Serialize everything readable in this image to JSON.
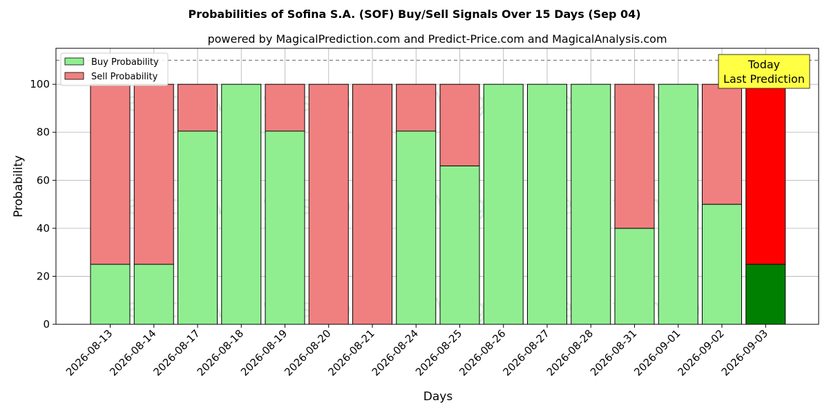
{
  "chart_data": {
    "type": "bar",
    "stacked": true,
    "title": "Probabilities of Sofina S.A. (SOF) Buy/Sell Signals Over 15 Days (Sep 04)",
    "subtitle": "powered by MagicalPrediction.com and Predict-Price.com and MagicalAnalysis.com",
    "xlabel": "Days",
    "ylabel": "Probability",
    "ylim": [
      0,
      115
    ],
    "yticks": [
      0,
      20,
      40,
      60,
      80,
      100
    ],
    "grid": true,
    "reference_line": 110,
    "legend_position": "top-left",
    "categories": [
      "2026-08-13",
      "2026-08-14",
      "2026-08-17",
      "2026-08-18",
      "2026-08-19",
      "2026-08-20",
      "2026-08-21",
      "2026-08-24",
      "2026-08-25",
      "2026-08-26",
      "2026-08-27",
      "2026-08-28",
      "2026-08-31",
      "2026-09-01",
      "2026-09-02",
      "2026-09-03"
    ],
    "series": [
      {
        "name": "Buy Probability",
        "color": "#90ee90",
        "values": [
          25,
          25,
          80.5,
          100,
          80.5,
          0,
          0,
          80.5,
          66,
          100,
          100,
          100,
          40,
          100,
          50,
          25
        ]
      },
      {
        "name": "Sell Probability",
        "color": "#f08080",
        "values": [
          75,
          75,
          19.5,
          0,
          19.5,
          100,
          100,
          19.5,
          34,
          0,
          0,
          0,
          60,
          0,
          50,
          75
        ]
      }
    ],
    "highlight": {
      "index": 15,
      "buy_color": "#008000",
      "sell_color": "#ff0000"
    },
    "annotation": {
      "lines": [
        "Today",
        "Last Prediction"
      ],
      "background": "#ffff44"
    },
    "watermarks": [
      "MagicalAnalysis.com",
      "MagicalPrediction.com"
    ]
  }
}
